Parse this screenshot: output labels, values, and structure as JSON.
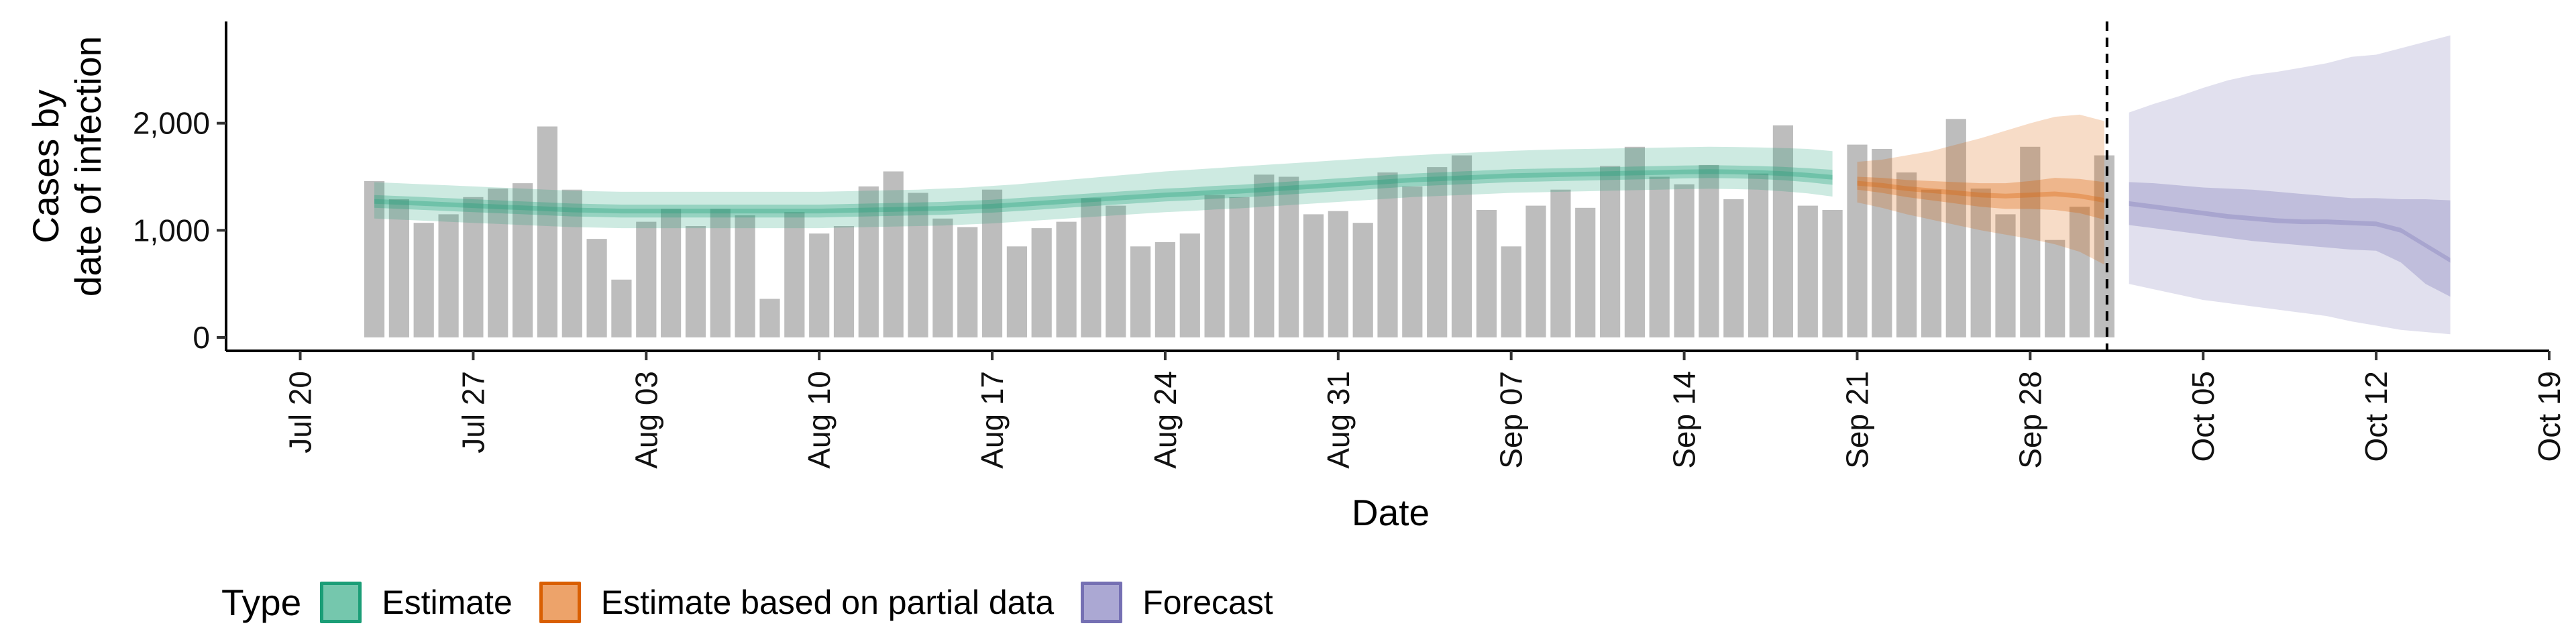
{
  "chart_data": {
    "type": "bar",
    "xlabel": "Date",
    "ylabel_lines": [
      "Cases by",
      "date of infection"
    ],
    "ylim": [
      0,
      2950
    ],
    "xlim": [
      "2020-07-17",
      "2020-10-19"
    ],
    "yticks": [
      0,
      1000,
      2000
    ],
    "ytick_labels": [
      "0",
      "1,000",
      "2,000"
    ],
    "xticks": [
      "2020-07-20",
      "2020-07-27",
      "2020-08-03",
      "2020-08-10",
      "2020-08-17",
      "2020-08-24",
      "2020-08-31",
      "2020-09-07",
      "2020-09-14",
      "2020-09-21",
      "2020-09-28",
      "2020-10-05",
      "2020-10-12",
      "2020-10-19"
    ],
    "xtick_labels": [
      "Jul 20",
      "Jul 27",
      "Aug 03",
      "Aug 10",
      "Aug 17",
      "Aug 24",
      "Aug 31",
      "Sep 07",
      "Sep 14",
      "Sep 21",
      "Sep 28",
      "Oct 05",
      "Oct 12",
      "Oct 19"
    ],
    "forecast_date": "2020-10-01",
    "bars": {
      "start_date": "2020-07-23",
      "color": "#BDBDBD",
      "values": [
        1460,
        1290,
        1070,
        1150,
        1310,
        1390,
        1440,
        1970,
        1380,
        920,
        540,
        1080,
        1200,
        1040,
        1200,
        1140,
        360,
        1170,
        970,
        1040,
        1410,
        1550,
        1350,
        1110,
        1030,
        1380,
        850,
        1020,
        1080,
        1300,
        1230,
        850,
        890,
        970,
        1330,
        1310,
        1520,
        1500,
        1150,
        1180,
        1070,
        1540,
        1410,
        1590,
        1700,
        1190,
        850,
        1230,
        1380,
        1210,
        1600,
        1780,
        1500,
        1430,
        1610,
        1290,
        1530,
        1980,
        1230,
        1190,
        1800,
        1760,
        1540,
        1380,
        2040,
        1390,
        1150,
        1780,
        910,
        1220,
        1700
      ]
    },
    "series": [
      {
        "name": "Estimate",
        "color": "#1B9E77",
        "start_date": "2020-07-23",
        "end_date": "2020-09-20",
        "median": [
          1270,
          1260,
          1250,
          1240,
          1230,
          1220,
          1210,
          1200,
          1190,
          1185,
          1180,
          1180,
          1180,
          1180,
          1180,
          1180,
          1180,
          1180,
          1180,
          1185,
          1190,
          1195,
          1200,
          1205,
          1215,
          1225,
          1240,
          1255,
          1270,
          1285,
          1300,
          1315,
          1330,
          1340,
          1355,
          1365,
          1380,
          1395,
          1410,
          1425,
          1440,
          1455,
          1470,
          1480,
          1490,
          1500,
          1510,
          1515,
          1520,
          1525,
          1530,
          1535,
          1540,
          1545,
          1548,
          1545,
          1540,
          1530,
          1515,
          1495
        ],
        "lower_50": [
          1210,
          1200,
          1190,
          1180,
          1170,
          1160,
          1150,
          1140,
          1130,
          1125,
          1120,
          1120,
          1120,
          1120,
          1120,
          1120,
          1120,
          1120,
          1120,
          1125,
          1130,
          1135,
          1140,
          1145,
          1155,
          1165,
          1180,
          1195,
          1210,
          1225,
          1240,
          1255,
          1270,
          1280,
          1295,
          1305,
          1320,
          1335,
          1350,
          1365,
          1380,
          1395,
          1410,
          1420,
          1430,
          1440,
          1450,
          1455,
          1460,
          1465,
          1470,
          1475,
          1480,
          1485,
          1488,
          1485,
          1480,
          1468,
          1450,
          1425
        ],
        "upper_50": [
          1330,
          1320,
          1310,
          1300,
          1290,
          1280,
          1270,
          1260,
          1250,
          1245,
          1240,
          1240,
          1240,
          1240,
          1240,
          1240,
          1240,
          1240,
          1240,
          1245,
          1250,
          1255,
          1260,
          1265,
          1275,
          1285,
          1300,
          1315,
          1330,
          1345,
          1360,
          1375,
          1390,
          1400,
          1415,
          1425,
          1440,
          1455,
          1470,
          1485,
          1500,
          1515,
          1530,
          1540,
          1550,
          1560,
          1570,
          1575,
          1580,
          1585,
          1590,
          1595,
          1600,
          1605,
          1608,
          1605,
          1600,
          1592,
          1580,
          1565
        ],
        "lower_90": [
          1110,
          1100,
          1090,
          1080,
          1070,
          1060,
          1050,
          1040,
          1030,
          1025,
          1020,
          1020,
          1020,
          1020,
          1020,
          1020,
          1020,
          1020,
          1020,
          1025,
          1030,
          1035,
          1040,
          1045,
          1055,
          1065,
          1080,
          1095,
          1110,
          1125,
          1140,
          1155,
          1170,
          1180,
          1195,
          1205,
          1220,
          1235,
          1250,
          1265,
          1280,
          1295,
          1310,
          1320,
          1330,
          1340,
          1350,
          1355,
          1360,
          1365,
          1370,
          1375,
          1380,
          1385,
          1388,
          1385,
          1380,
          1365,
          1345,
          1315
        ],
        "upper_90": [
          1450,
          1440,
          1430,
          1420,
          1410,
          1400,
          1390,
          1380,
          1370,
          1365,
          1360,
          1360,
          1360,
          1360,
          1360,
          1360,
          1360,
          1360,
          1360,
          1365,
          1370,
          1375,
          1380,
          1390,
          1400,
          1415,
          1430,
          1450,
          1470,
          1490,
          1510,
          1530,
          1550,
          1565,
          1580,
          1595,
          1610,
          1625,
          1640,
          1655,
          1670,
          1685,
          1700,
          1712,
          1722,
          1732,
          1742,
          1750,
          1756,
          1760,
          1764,
          1768,
          1772,
          1776,
          1780,
          1778,
          1774,
          1768,
          1760,
          1740
        ]
      },
      {
        "name": "Estimate based on partial data",
        "color": "#D95F02",
        "start_date": "2020-09-21",
        "end_date": "2020-10-01",
        "median": [
          1440,
          1420,
          1390,
          1370,
          1350,
          1330,
          1320,
          1330,
          1340,
          1320,
          1280
        ],
        "lower_50": [
          1380,
          1350,
          1310,
          1280,
          1250,
          1220,
          1200,
          1200,
          1190,
          1160,
          1100
        ],
        "upper_50": [
          1500,
          1490,
          1470,
          1460,
          1450,
          1440,
          1440,
          1460,
          1490,
          1480,
          1450
        ],
        "lower_90": [
          1260,
          1210,
          1150,
          1100,
          1050,
          1000,
          960,
          920,
          870,
          800,
          680
        ],
        "upper_90": [
          1640,
          1660,
          1700,
          1740,
          1800,
          1860,
          1930,
          2000,
          2060,
          2080,
          2020
        ]
      },
      {
        "name": "Forecast",
        "color": "#7570B3",
        "start_date": "2020-10-02",
        "end_date": "2020-10-15",
        "median": [
          1250,
          1220,
          1190,
          1160,
          1130,
          1110,
          1090,
          1080,
          1080,
          1070,
          1060,
          1000,
          860,
          720
        ],
        "lower_50": [
          1050,
          1020,
          990,
          960,
          930,
          900,
          880,
          860,
          840,
          820,
          810,
          700,
          500,
          380
        ],
        "upper_50": [
          1450,
          1440,
          1420,
          1400,
          1390,
          1380,
          1360,
          1340,
          1320,
          1300,
          1300,
          1290,
          1290,
          1280
        ],
        "lower_90": [
          500,
          450,
          400,
          350,
          320,
          290,
          260,
          230,
          200,
          150,
          110,
          70,
          50,
          30
        ],
        "upper_90": [
          2100,
          2180,
          2250,
          2330,
          2400,
          2450,
          2480,
          2520,
          2560,
          2620,
          2640,
          2700,
          2760,
          2820
        ]
      }
    ],
    "legend": {
      "title": "Type",
      "position": "bottom",
      "items": [
        {
          "label": "Estimate",
          "fill": "#75C7AD",
          "border": "#1B9E77"
        },
        {
          "label": "Estimate based on partial data",
          "fill": "#EDA36A",
          "border": "#D95F02"
        },
        {
          "label": "Forecast",
          "fill": "#ABA8D3",
          "border": "#7570B3"
        }
      ]
    }
  }
}
